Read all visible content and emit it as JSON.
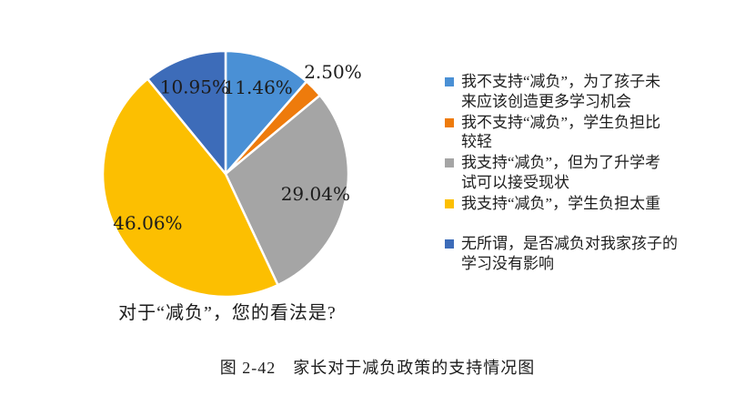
{
  "chart_data": {
    "type": "pie",
    "title": "对于“减负”，您的看法是?",
    "legend_position": "right",
    "start_angle_deg": 0,
    "direction": "clockwise",
    "label_text_color": "#1c1c1c",
    "slice_separator_color": "#ffffff",
    "slices": [
      {
        "label": "我不支持“减负”，为了孩子未来应该创造更多学习机会",
        "legend_lines": [
          "我不支持“减负”，为了孩子未",
          "来应该创造更多学习机会"
        ],
        "value": 11.46,
        "display": "11.46%",
        "color": "#4A90D5"
      },
      {
        "label": "我不支持“减负”，学生负担比较轻",
        "legend_lines": [
          "我不支持“减负”，学生负担比",
          "较轻"
        ],
        "value": 2.5,
        "display": "2.50%",
        "color": "#EE7B0C"
      },
      {
        "label": "我支持“减负”，但为了升学考试可以接受现状",
        "legend_lines": [
          "我支持“减负”，但为了升学考",
          "试可以接受现状"
        ],
        "value": 29.04,
        "display": "29.04%",
        "color": "#A5A5A5"
      },
      {
        "label": "我支持“减负”，学生负担太重",
        "legend_lines": [
          "我支持“减负”，学生负担太重"
        ],
        "value": 46.06,
        "display": "46.06%",
        "color": "#FCBF01"
      },
      {
        "label": "无所谓，是否减负对我家孩子的学习没有影响",
        "legend_lines": [
          "无所谓，是否减负对我家孩子的",
          "学习没有影响"
        ],
        "value": 10.95,
        "display": "10.95%",
        "color": "#3D6CB9"
      }
    ]
  },
  "caption": "图 2-42　家长对于减负政策的支持情况图"
}
